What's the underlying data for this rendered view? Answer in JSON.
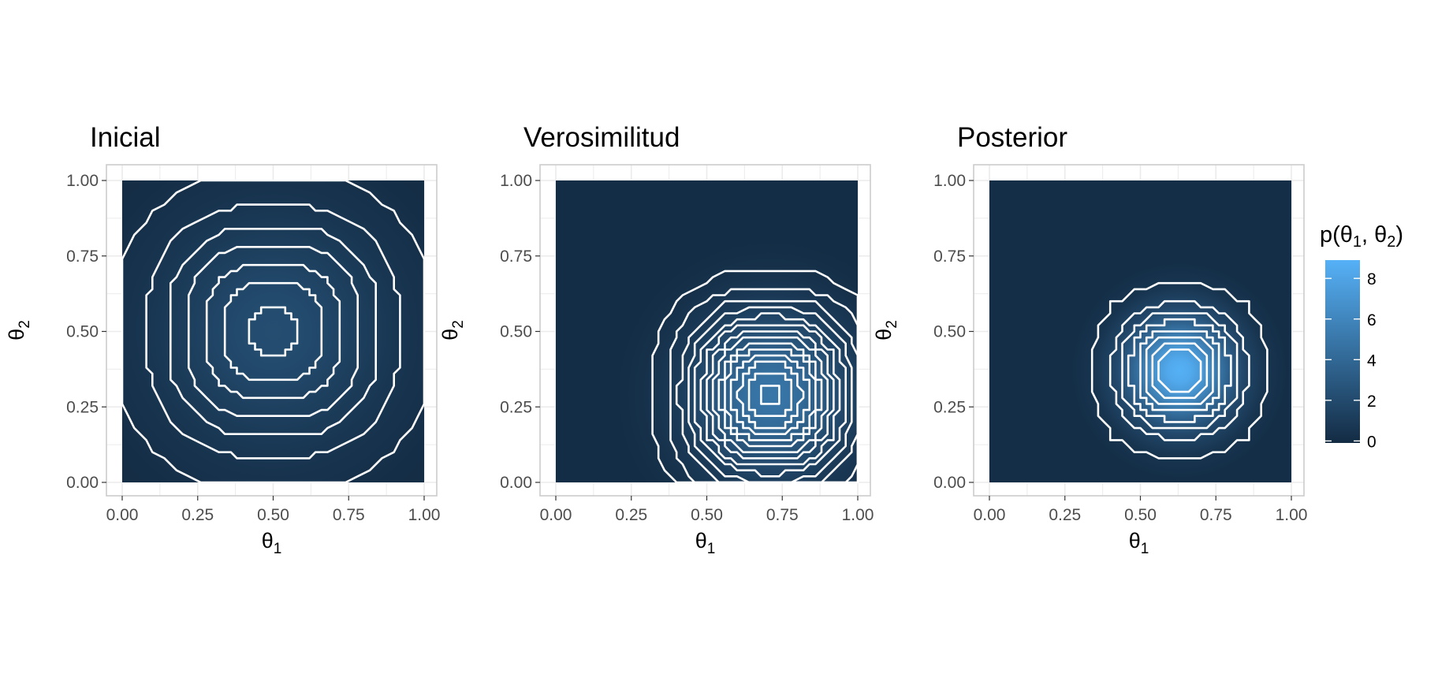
{
  "chart_data": [
    {
      "type": "heatmap",
      "title": "Inicial",
      "xlabel": "θ1",
      "ylabel": "θ2",
      "xlim": [
        0,
        1
      ],
      "ylim": [
        0,
        1
      ],
      "x_ticks": [
        "0.00",
        "0.25",
        "0.50",
        "0.75",
        "1.00"
      ],
      "y_ticks": [
        "0.00",
        "0.25",
        "0.50",
        "0.75",
        "1.00"
      ],
      "peak": {
        "x": 0.5,
        "y": 0.5,
        "value": 2.2
      },
      "spread": {
        "x": 0.26,
        "y": 0.26
      },
      "contour_levels": [
        0.3,
        0.6,
        0.9,
        1.2,
        1.5,
        1.8,
        2.1
      ],
      "grid": true
    },
    {
      "type": "heatmap",
      "title": "Verosimilitud",
      "xlabel": "θ1",
      "ylabel": "θ2",
      "xlim": [
        0,
        1
      ],
      "ylim": [
        0,
        1
      ],
      "x_ticks": [
        "0.00",
        "0.25",
        "0.50",
        "0.75",
        "1.00"
      ],
      "y_ticks": [
        "0.00",
        "0.25",
        "0.50",
        "0.75",
        "1.00"
      ],
      "peak": {
        "x": 0.71,
        "y": 0.29,
        "value": 5.0
      },
      "spread": {
        "x": 0.17,
        "y": 0.18
      },
      "contour_levels": [
        0.35,
        0.7,
        1.05,
        1.4,
        1.75,
        2.1,
        2.45,
        2.8,
        3.15,
        3.5,
        3.85,
        4.2,
        4.55,
        4.9
      ],
      "grid": true
    },
    {
      "type": "heatmap",
      "title": "Posterior",
      "xlabel": "θ1",
      "ylabel": "θ2",
      "xlim": [
        0,
        1
      ],
      "ylim": [
        0,
        1
      ],
      "x_ticks": [
        "0.00",
        "0.25",
        "0.50",
        "0.75",
        "1.00"
      ],
      "y_ticks": [
        "0.00",
        "0.25",
        "0.50",
        "0.75",
        "1.00"
      ],
      "peak": {
        "x": 0.63,
        "y": 0.37,
        "value": 8.8
      },
      "spread": {
        "x": 0.12,
        "y": 0.12
      },
      "contour_levels": [
        0.5,
        1.5,
        2.5,
        3.5,
        4.5,
        5.5,
        6.5,
        7.5
      ],
      "grid": true
    }
  ],
  "legend": {
    "title": "p(θ1, θ2)",
    "labels": [
      "8",
      "6",
      "4",
      "2",
      "0"
    ],
    "values": [
      8,
      6,
      4,
      2,
      0
    ],
    "range": [
      -0.1,
      8.9
    ],
    "color_low": "#132b43",
    "color_high": "#56b1f7",
    "placement": "right"
  },
  "colors": {
    "contour": "#ffffff",
    "panel_border": "#cccccc",
    "grid": "#ebebeb"
  }
}
